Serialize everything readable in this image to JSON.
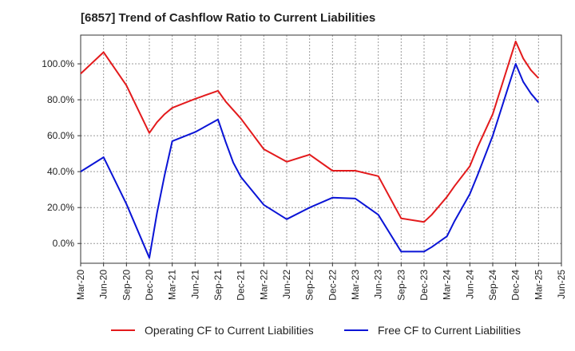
{
  "chart_data": {
    "type": "line",
    "title": "[6857]  Trend of Cashflow Ratio to Current Liabilities",
    "xlabel": "",
    "ylabel": "",
    "x": [
      "Mar-20",
      "Jun-20",
      "Sep-20",
      "Dec-20",
      "Mar-21",
      "Apr-21",
      "Jun-21",
      "Sep-21",
      "Oct-21",
      "Dec-21",
      "Mar-22",
      "Jun-22",
      "Sep-22",
      "Dec-22",
      "Mar-23",
      "Jun-23",
      "Sep-23",
      "Dec-23",
      "Jan-24",
      "Mar-24",
      "Jun-24",
      "Sep-24",
      "Dec-24",
      "Jan-25",
      "Feb-25",
      "Mar-25"
    ],
    "x_ticks": [
      "Mar-20",
      "Jun-20",
      "Sep-20",
      "Dec-20",
      "Mar-21",
      "Jun-21",
      "Sep-21",
      "Dec-21",
      "Mar-22",
      "Jun-22",
      "Sep-22",
      "Dec-22",
      "Mar-23",
      "Jun-23",
      "Sep-23",
      "Dec-23",
      "Mar-24",
      "Jun-24",
      "Sep-24",
      "Dec-24",
      "Mar-25",
      "Jun-25"
    ],
    "x_range": [
      "Mar-20",
      "Jun-25"
    ],
    "series": [
      {
        "name": "Operating CF to Current Liabilities",
        "color": "#e31a1c",
        "x": [
          "Mar-20",
          "Jun-20",
          "Sep-20",
          "Dec-20",
          "Jan-21",
          "Feb-21",
          "Mar-21",
          "Jun-21",
          "Sep-21",
          "Oct-21",
          "Dec-21",
          "Mar-22",
          "Jun-22",
          "Sep-22",
          "Dec-22",
          "Mar-23",
          "Jun-23",
          "Sep-23",
          "Dec-23",
          "Jan-24",
          "Mar-24",
          "Apr-24",
          "Jun-24",
          "Jul-24",
          "Sep-24",
          "Dec-24",
          "Jan-25",
          "Feb-25",
          "Mar-25"
        ],
        "values": [
          94.5,
          106.5,
          88.0,
          61.5,
          67.5,
          72.0,
          75.5,
          80.5,
          85.0,
          79.0,
          69.5,
          52.5,
          45.5,
          49.5,
          40.5,
          40.5,
          37.5,
          14.0,
          12.0,
          16.0,
          26.0,
          32.0,
          43.0,
          53.5,
          72.0,
          112.5,
          103.0,
          96.5,
          92.0
        ]
      },
      {
        "name": "Free CF to Current Liabilities",
        "color": "#0a14d6",
        "x": [
          "Mar-20",
          "Jun-20",
          "Sep-20",
          "Dec-20",
          "Jan-21",
          "Feb-21",
          "Mar-21",
          "Jun-21",
          "Sep-21",
          "Oct-21",
          "Nov-21",
          "Dec-21",
          "Mar-22",
          "Jun-22",
          "Sep-22",
          "Dec-22",
          "Mar-23",
          "Jun-23",
          "Sep-23",
          "Dec-23",
          "Jan-24",
          "Mar-24",
          "Apr-24",
          "Jun-24",
          "Jul-24",
          "Sep-24",
          "Dec-24",
          "Jan-25",
          "Feb-25",
          "Mar-25"
        ],
        "values": [
          40.0,
          48.0,
          22.0,
          -8.0,
          17.0,
          38.0,
          57.0,
          62.0,
          69.0,
          56.5,
          45.0,
          37.0,
          21.5,
          13.5,
          20.0,
          25.5,
          25.0,
          16.0,
          -4.5,
          -4.5,
          -2.0,
          4.0,
          12.5,
          27.5,
          38.0,
          60.0,
          100.0,
          90.0,
          83.5,
          78.5
        ]
      }
    ],
    "y_ticks": [
      "0.0%",
      "20.0%",
      "40.0%",
      "60.0%",
      "80.0%",
      "100.0%"
    ],
    "ylim": [
      -11,
      116
    ],
    "grid": true,
    "legend_position": "bottom"
  }
}
